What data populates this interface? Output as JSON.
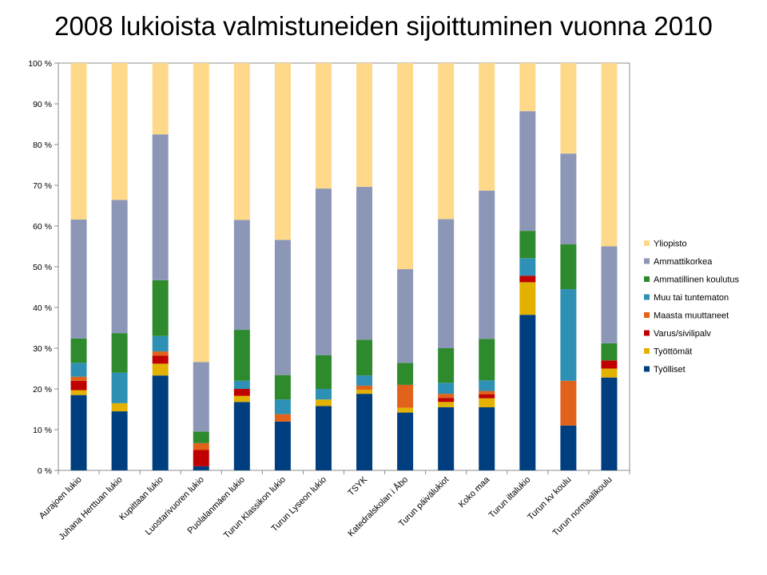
{
  "chart_data": {
    "type": "bar",
    "stacked": true,
    "percent": true,
    "title": "2008 lukioista valmistuneiden sijoittuminen vuonna 2010",
    "categories": [
      "Aurajoen lukio",
      "Juhana Herttuan lukio",
      "Kupittaan lukio",
      "Luostarivuoren lukio",
      "Puolalanmäen lukio",
      "Turun Klassikon lukio",
      "Turun Lyseon lukio",
      "TSYK",
      "Katedralskolan i Åbo",
      "Turun päivälukiot",
      "Koko maa",
      "Turun iltalukio",
      "Turun kv koulu",
      "Turun normaalikoulu"
    ],
    "yticks": [
      "0 %",
      "10 %",
      "20 %",
      "30 %",
      "40 %",
      "50 %",
      "60 %",
      "70 %",
      "80 %",
      "90 %",
      "100 %"
    ],
    "ylim": [
      0,
      100
    ],
    "grid": false,
    "legend_position": "right",
    "series": [
      {
        "name": "Työlliset",
        "color": "#003F7F",
        "values": [
          18.5,
          14.5,
          23.3,
          1.0,
          16.8,
          12.0,
          15.8,
          18.8,
          14.2,
          15.5,
          15.5,
          38.2,
          11.0,
          22.8
        ]
      },
      {
        "name": "Työttömät",
        "color": "#E3B100",
        "values": [
          1.2,
          2.0,
          2.9,
          0.0,
          1.5,
          0.0,
          1.6,
          1.0,
          1.2,
          1.3,
          2.2,
          8.0,
          0.0,
          2.2
        ]
      },
      {
        "name": "Varus/sivilipalv",
        "color": "#C00000",
        "values": [
          2.3,
          0.0,
          2.0,
          4.0,
          1.7,
          0.0,
          0.0,
          0.0,
          0.0,
          1.0,
          1.0,
          1.6,
          0.0,
          2.0
        ]
      },
      {
        "name": "Maasta muuttaneet",
        "color": "#E0621B",
        "values": [
          1.0,
          0.0,
          1.0,
          1.7,
          0.0,
          1.8,
          0.0,
          1.0,
          5.6,
          1.0,
          0.8,
          0.0,
          11.0,
          0.0
        ]
      },
      {
        "name": "Muu tai tuntematon",
        "color": "#2E90B5",
        "values": [
          3.4,
          7.5,
          3.8,
          0.0,
          2.0,
          3.6,
          2.6,
          2.5,
          0.0,
          2.7,
          2.6,
          4.3,
          22.5,
          0.0
        ]
      },
      {
        "name": "Ammatillinen koulutus",
        "color": "#2D8A2D",
        "values": [
          6.0,
          9.7,
          13.7,
          2.8,
          12.5,
          6.0,
          8.3,
          8.8,
          5.4,
          8.5,
          10.2,
          6.7,
          11.0,
          4.2
        ]
      },
      {
        "name": "Ammattikorkea",
        "color": "#8C97B8",
        "values": [
          29.2,
          32.7,
          35.8,
          17.1,
          27.0,
          33.2,
          40.9,
          37.5,
          23.0,
          31.7,
          36.4,
          29.4,
          22.3,
          23.8
        ]
      },
      {
        "name": "Yliopisto",
        "color": "#FFD98A",
        "values": [
          38.4,
          33.6,
          17.5,
          73.4,
          38.5,
          43.4,
          30.8,
          30.4,
          50.6,
          38.3,
          31.3,
          11.8,
          22.2,
          45.0
        ]
      }
    ]
  }
}
